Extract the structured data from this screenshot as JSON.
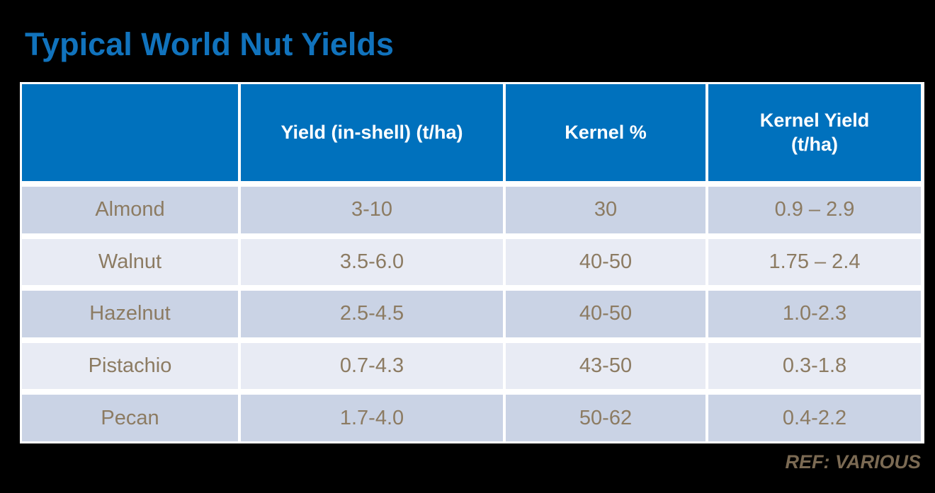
{
  "title": "Typical World Nut Yields",
  "table": {
    "headers": [
      "",
      "Yield (in-shell) (t/ha)",
      "Kernel %",
      "Kernel Yield (t/ha)"
    ],
    "rows": [
      [
        "Almond",
        "3-10",
        "30",
        "0.9 – 2.9"
      ],
      [
        "Walnut",
        "3.5-6.0",
        "40-50",
        "1.75 – 2.4"
      ],
      [
        "Hazelnut",
        "2.5-4.5",
        "40-50",
        "1.0-2.3"
      ],
      [
        "Pistachio",
        "0.7-4.3",
        "43-50",
        "0.3-1.8"
      ],
      [
        "Pecan",
        "1.7-4.0",
        "50-62",
        "0.4-2.2"
      ]
    ]
  },
  "footer": {
    "ref_label": "REF: VARIOUS"
  },
  "colors": {
    "title": "#1173bd",
    "header_bg": "#0071bd",
    "header_text": "#ffffff",
    "row_dark": "#cad3e5",
    "row_light": "#e8ebf4",
    "body_text": "#8c7b62",
    "ref_text": "#7b6a53",
    "background": "#000000",
    "table_border": "#ffffff"
  }
}
